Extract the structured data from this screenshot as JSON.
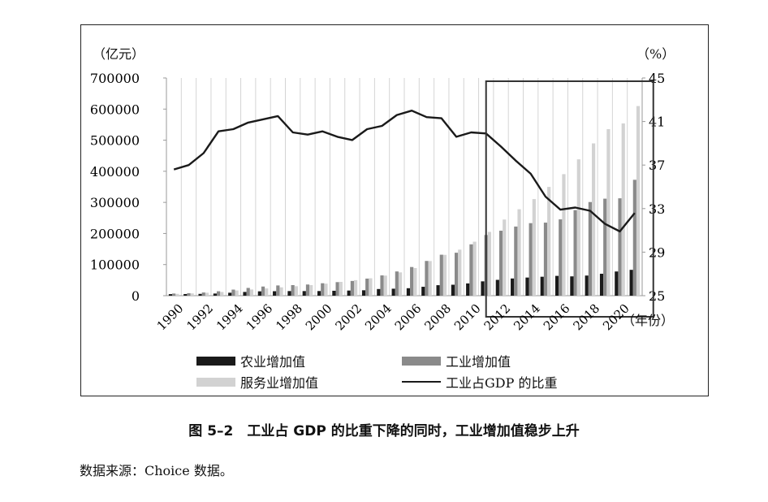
{
  "chart_data": {
    "type": "bar",
    "title": "",
    "left_axis": {
      "unit_label": "（亿元）",
      "range": [
        0,
        700000
      ],
      "ticks": [
        "700000",
        "600000",
        "500000",
        "400000",
        "300000",
        "200000",
        "100000",
        "0"
      ]
    },
    "right_axis": {
      "unit_label": "（%）",
      "range": [
        25,
        45
      ],
      "ticks": [
        "45",
        "41",
        "37",
        "33",
        "29",
        "25"
      ]
    },
    "x_unit_label": "（年份）",
    "categories": [
      "1990",
      "1991",
      "1992",
      "1993",
      "1994",
      "1995",
      "1996",
      "1997",
      "1998",
      "1999",
      "2000",
      "2001",
      "2002",
      "2003",
      "2004",
      "2005",
      "2006",
      "2007",
      "2008",
      "2009",
      "2010",
      "2011",
      "2012",
      "2013",
      "2014",
      "2015",
      "2016",
      "2017",
      "2018",
      "2019",
      "2020",
      "2021"
    ],
    "x_tick_labels": [
      "1990",
      "1992",
      "1994",
      "1996",
      "1998",
      "2000",
      "2002",
      "2004",
      "2006",
      "2008",
      "2010",
      "2012",
      "2014",
      "2016",
      "2018",
      "2020"
    ],
    "series": [
      {
        "name": "农业增加值",
        "kind": "bar",
        "axis": "left",
        "color": "#1a1a1a",
        "values": [
          5000,
          5300,
          5800,
          6900,
          9500,
          12000,
          14000,
          14400,
          14800,
          14800,
          14900,
          15800,
          16500,
          17400,
          21400,
          22400,
          24000,
          28600,
          33700,
          35200,
          39400,
          46100,
          50900,
          55300,
          58300,
          60900,
          63700,
          62100,
          64700,
          70500,
          77800,
          83100
        ]
      },
      {
        "name": "工业增加值",
        "kind": "bar",
        "axis": "left",
        "color": "#8a8a8a",
        "values": [
          6900,
          8100,
          10300,
          14200,
          19500,
          24900,
          29400,
          32900,
          34000,
          35900,
          40000,
          43600,
          47400,
          54900,
          65200,
          77900,
          92200,
          111700,
          131700,
          138100,
          165100,
          195100,
          208900,
          222300,
          233200,
          234900,
          245400,
          275100,
          301100,
          311900,
          313100,
          372600
        ]
      },
      {
        "name": "服务业增加值",
        "kind": "bar",
        "axis": "left",
        "color": "#d2d2d2",
        "values": [
          5800,
          7300,
          9400,
          11900,
          16700,
          19900,
          23300,
          26900,
          30500,
          33900,
          38700,
          44400,
          49900,
          56000,
          64600,
          74900,
          88800,
          111400,
          131300,
          148000,
          173600,
          205200,
          244800,
          277900,
          310600,
          349700,
          390800,
          438400,
          489700,
          535400,
          553900,
          609700
        ]
      },
      {
        "name": "工业占GDP的比重",
        "kind": "line",
        "axis": "right",
        "color": "#1a1a1a",
        "values": [
          36.6,
          37.0,
          38.1,
          40.1,
          40.3,
          40.9,
          41.2,
          41.5,
          40.0,
          39.8,
          40.1,
          39.6,
          39.3,
          40.3,
          40.6,
          41.6,
          42.0,
          41.4,
          41.3,
          39.6,
          40.0,
          39.9,
          38.7,
          37.4,
          36.2,
          34.1,
          32.9,
          33.1,
          32.8,
          31.6,
          30.9,
          32.6
        ]
      }
    ],
    "highlight_box": {
      "from_category": "2012",
      "to_category": "2021"
    },
    "legend": [
      {
        "label": "农业增加值",
        "type": "bar",
        "color": "#1a1a1a"
      },
      {
        "label": "工业增加值",
        "type": "bar",
        "color": "#8a8a8a"
      },
      {
        "label": "服务业增加值",
        "type": "bar",
        "color": "#d2d2d2"
      },
      {
        "label": "工业占GDP 的比重",
        "type": "line",
        "color": "#1a1a1a"
      }
    ]
  },
  "caption": "图 5–2　工业占 GDP 的比重下降的同时，工业增加值稳步上升",
  "source": "数据来源：Choice 数据。"
}
